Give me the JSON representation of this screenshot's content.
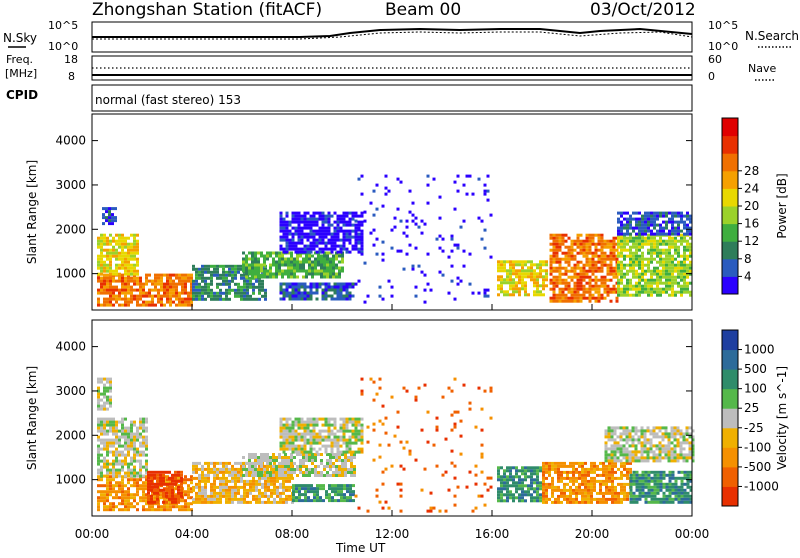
{
  "header": {
    "station": "Zhongshan Station (fitACF)",
    "beam": "Beam 00",
    "date": "03/Oct/2012"
  },
  "summary_panels": {
    "nsky_label": "N.Sky",
    "nsky_ticks": [
      "10^5",
      "10^0"
    ],
    "nsearch_label": "N.Search",
    "freq_label": "Freq.",
    "freq_unit": "[MHz]",
    "freq_ticks": [
      "18",
      "8"
    ],
    "nave_label": "Nave",
    "nave_ticks": [
      "60",
      "0"
    ],
    "cpid_label": "CPID",
    "cpid_text": "normal (fast stereo) 153"
  },
  "chart_data": [
    {
      "type": "heatmap",
      "name": "power",
      "ylabel": "Slant Range [km]",
      "yticks": [
        1000,
        2000,
        3000,
        4000
      ],
      "ylim": [
        180,
        4600
      ],
      "colorbar_label": "Power [dB]",
      "colorbar_ticks": [
        "4",
        "8",
        "12",
        "16",
        "20",
        "24",
        "28"
      ],
      "colors": [
        "#2b00ff",
        "#2a5bbf",
        "#2e7d5a",
        "#3fae3f",
        "#9bd22a",
        "#e8d800",
        "#f5a000",
        "#f07000",
        "#e83000",
        "#e00000"
      ],
      "regions": [
        {
          "t": [
            0.2,
            4.0
          ],
          "r": [
            300,
            1000
          ],
          "v": 7
        },
        {
          "t": [
            0.2,
            1.8
          ],
          "r": [
            1000,
            1900
          ],
          "v": 5
        },
        {
          "t": [
            0.4,
            1.0
          ],
          "r": [
            2100,
            2500
          ],
          "v": 1
        },
        {
          "t": [
            4.0,
            7.0
          ],
          "r": [
            400,
            1200
          ],
          "v": 2
        },
        {
          "t": [
            6.0,
            10.0
          ],
          "r": [
            900,
            1500
          ],
          "v": 3
        },
        {
          "t": [
            7.5,
            10.8
          ],
          "r": [
            1500,
            2400
          ],
          "v": 0
        },
        {
          "t": [
            7.5,
            10.5
          ],
          "r": [
            400,
            800
          ],
          "v": 1
        },
        {
          "t": [
            10.5,
            16.0
          ],
          "r": [
            300,
            3300
          ],
          "v": 0
        },
        {
          "t": [
            16.2,
            18.2
          ],
          "r": [
            500,
            1300
          ],
          "v": 5
        },
        {
          "t": [
            18.3,
            21.0
          ],
          "r": [
            400,
            1900
          ],
          "v": 7
        },
        {
          "t": [
            21.0,
            24.0
          ],
          "r": [
            500,
            1900
          ],
          "v": 4
        },
        {
          "t": [
            21.0,
            24.0
          ],
          "r": [
            1900,
            2400
          ],
          "v": 1
        }
      ],
      "xlim": [
        0,
        24
      ]
    },
    {
      "type": "heatmap",
      "name": "velocity",
      "ylabel": "Slant Range [km]",
      "yticks": [
        1000,
        2000,
        3000,
        4000
      ],
      "ylim": [
        180,
        4600
      ],
      "colorbar_label": "Velocity [m s^-1]",
      "colorbar_ticks": [
        "1000",
        "500",
        "100",
        "25",
        "-25",
        "-100",
        "-500",
        "-1000"
      ],
      "colors": [
        "#1f3fa0",
        "#2d6b9a",
        "#2f8c6a",
        "#55b84a",
        "#bdbdbd",
        "#f0b000",
        "#f59000",
        "#f06000",
        "#e83000"
      ],
      "regions": [
        {
          "t": [
            0.2,
            4.0
          ],
          "r": [
            300,
            1100
          ],
          "v": 6
        },
        {
          "t": [
            0.2,
            2.2
          ],
          "r": [
            1100,
            2400
          ],
          "v": 4
        },
        {
          "t": [
            0.2,
            0.8
          ],
          "r": [
            2600,
            3300
          ],
          "v": 4
        },
        {
          "t": [
            2.2,
            3.6
          ],
          "r": [
            500,
            1200
          ],
          "v": 8
        },
        {
          "t": [
            4.0,
            8.0
          ],
          "r": [
            500,
            1400
          ],
          "v": 5
        },
        {
          "t": [
            6.0,
            10.5
          ],
          "r": [
            1100,
            1600
          ],
          "v": 4
        },
        {
          "t": [
            7.5,
            10.8
          ],
          "r": [
            1600,
            2400
          ],
          "v": 4
        },
        {
          "t": [
            8.0,
            10.5
          ],
          "r": [
            500,
            900
          ],
          "v": 2
        },
        {
          "t": [
            10.5,
            16.0
          ],
          "r": [
            300,
            3300
          ],
          "v": 7
        },
        {
          "t": [
            16.2,
            18.0
          ],
          "r": [
            500,
            1300
          ],
          "v": 2
        },
        {
          "t": [
            18.0,
            21.5
          ],
          "r": [
            500,
            1400
          ],
          "v": 6
        },
        {
          "t": [
            21.5,
            24.0
          ],
          "r": [
            500,
            1200
          ],
          "v": 2
        },
        {
          "t": [
            20.5,
            24.0
          ],
          "r": [
            1400,
            2200
          ],
          "v": 4
        }
      ],
      "xlim": [
        0,
        24
      ]
    }
  ],
  "x_axis": {
    "label": "Time UT",
    "ticks": [
      "00:00",
      "04:00",
      "08:00",
      "12:00",
      "16:00",
      "20:00",
      "00:00"
    ]
  }
}
